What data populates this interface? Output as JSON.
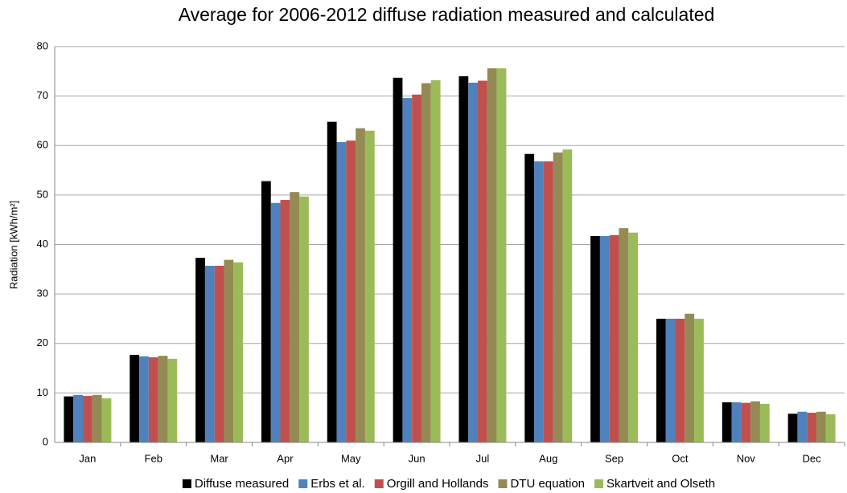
{
  "chart_data": {
    "type": "bar",
    "title": "Average for 2006-2012 diffuse radiation measured and calculated",
    "y_label": "Radiation [kWh/m²]",
    "categories": [
      "Jan",
      "Feb",
      "Mar",
      "Apr",
      "May",
      "Jun",
      "Jul",
      "Aug",
      "Sep",
      "Oct",
      "Nov",
      "Dec"
    ],
    "series": [
      {
        "name": "Diffuse measured",
        "color": "#000000",
        "values": [
          9.3,
          17.7,
          37.3,
          52.8,
          64.8,
          73.7,
          74.0,
          58.3,
          41.7,
          25.0,
          8.1,
          5.8
        ]
      },
      {
        "name": "Erbs et al.",
        "color": "#4f81bd",
        "values": [
          9.6,
          17.4,
          35.7,
          48.4,
          60.7,
          69.6,
          72.7,
          56.8,
          41.7,
          25.0,
          8.1,
          6.2
        ]
      },
      {
        "name": "Orgill and Hollands",
        "color": "#c0504d",
        "values": [
          9.4,
          17.2,
          35.7,
          49.0,
          61.0,
          70.3,
          73.1,
          56.8,
          41.9,
          25.0,
          8.0,
          6.0
        ]
      },
      {
        "name": "DTU equation",
        "color": "#948a54",
        "values": [
          9.6,
          17.5,
          36.9,
          50.6,
          63.5,
          72.6,
          75.6,
          58.6,
          43.3,
          26.0,
          8.3,
          6.2
        ]
      },
      {
        "name": "Skartveit and Olseth",
        "color": "#9bbb59",
        "values": [
          8.9,
          16.9,
          36.4,
          49.7,
          63.0,
          73.2,
          75.6,
          59.2,
          42.4,
          25.0,
          7.8,
          5.7
        ]
      }
    ],
    "ylim": [
      0,
      80
    ],
    "yticks": [
      0,
      10,
      20,
      30,
      40,
      50,
      60,
      70,
      80
    ],
    "grid": true,
    "legend": "bottom"
  }
}
